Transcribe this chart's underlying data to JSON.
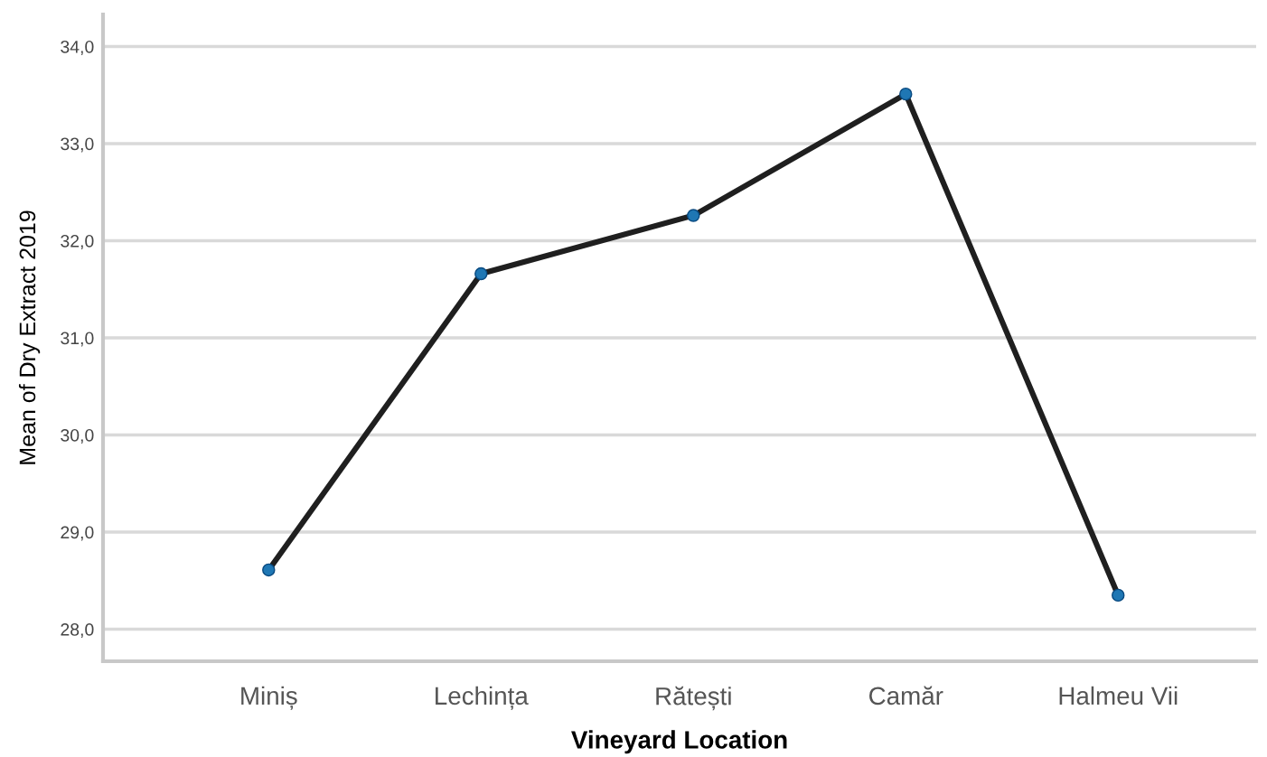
{
  "chart_data": {
    "type": "line",
    "xlabel": "Vineyard Location",
    "ylabel": "Mean of Dry Extract 2019",
    "categories": [
      "Miniș",
      "Lechința",
      "Rătești",
      "Camăr",
      "Halmeu Vii"
    ],
    "series": [
      {
        "color": "#1f1f1f",
        "values": [
          28.61,
          31.66,
          32.26,
          33.51,
          28.35
        ]
      }
    ],
    "marker": "circle",
    "line_style": "solid",
    "ylim": [
      27.67,
      34.33
    ],
    "yticks": [
      {
        "value": 28,
        "label": "28,0"
      },
      {
        "value": 29,
        "label": "29,0"
      },
      {
        "value": 30,
        "label": "30,0"
      },
      {
        "value": 31,
        "label": "31,0"
      },
      {
        "value": 32,
        "label": "32,0"
      },
      {
        "value": 33,
        "label": "33,0"
      },
      {
        "value": 34,
        "label": "34,0"
      }
    ],
    "grid": "y",
    "legend": false
  }
}
